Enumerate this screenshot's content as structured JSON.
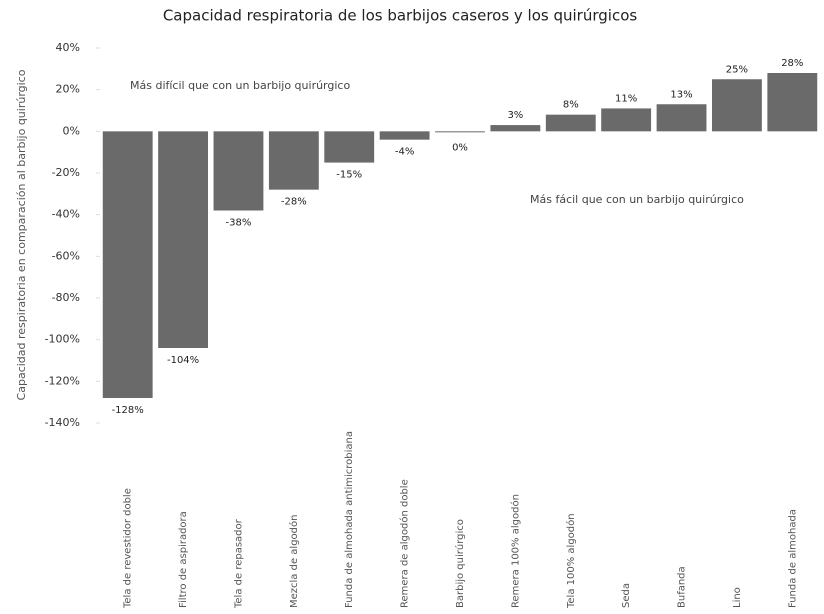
{
  "chart_data": {
    "type": "bar",
    "title": "Capacidad respiratoria de los barbijos caseros y los quirúrgicos",
    "y_label": "Capacidad respiratoria en comparación al barbijo quirúrgico",
    "annotations": [
      "Más difícil que con un barbijo quirúrgico",
      "Más fácil que con un barbijo quirúrgico"
    ],
    "categories": [
      "Tela de revestidor doble",
      "Filtro de aspiradora",
      "Tela de repasador",
      "Mezcla de algodón",
      "Funda de almohada antimicrobiana",
      "Remera de algodón doble",
      "Barbijo quirúrgico",
      "Remera 100% algodón",
      "Tela 100% algodón",
      "Seda",
      "Bufanda",
      "Lino",
      "Funda de almohada"
    ],
    "values": [
      -128,
      -104,
      -38,
      -28,
      -15,
      -4,
      0,
      3,
      8,
      11,
      13,
      25,
      28
    ],
    "value_labels": [
      "-128%",
      "-104%",
      "-38%",
      "-28%",
      "-15%",
      "-4%",
      "0%",
      "3%",
      "8%",
      "11%",
      "13%",
      "25%",
      "28%"
    ],
    "color": "#6a6a6a",
    "ylim": [
      -140,
      40
    ],
    "yticks": [
      {
        "value": 40,
        "label": "40%"
      },
      {
        "value": 20,
        "label": "20%"
      },
      {
        "value": 0,
        "label": "0%"
      },
      {
        "value": -20,
        "label": "-20%"
      },
      {
        "value": -40,
        "label": "-40%"
      },
      {
        "value": -60,
        "label": "-60%"
      },
      {
        "value": -80,
        "label": "-80%"
      },
      {
        "value": -100,
        "label": "-100%"
      },
      {
        "value": -120,
        "label": "-120%"
      },
      {
        "value": -140,
        "label": "-140%"
      }
    ],
    "grid": false
  }
}
